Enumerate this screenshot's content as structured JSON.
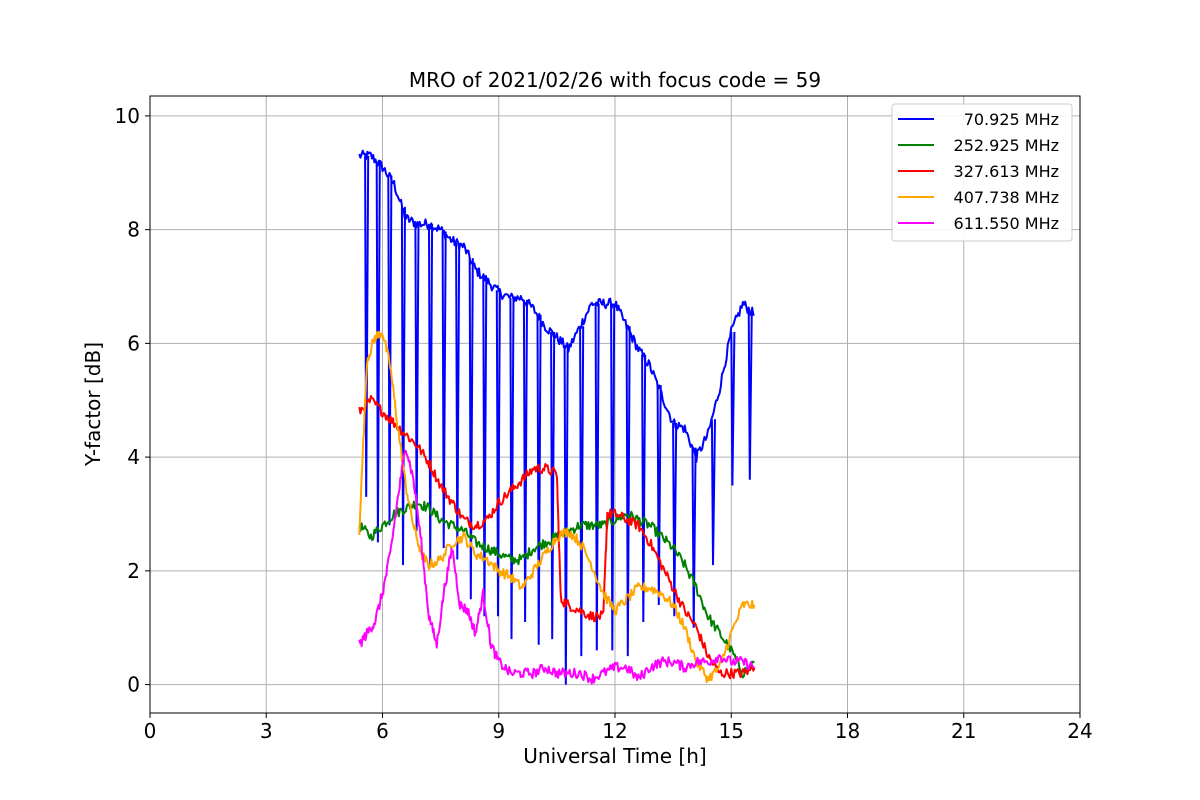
{
  "chart_data": {
    "type": "line",
    "title": "MRO of 2021/02/26 with focus code = 59",
    "xlabel": "Universal Time [h]",
    "ylabel": "Y-factor [dB]",
    "xlim": [
      0,
      24
    ],
    "ylim": [
      -0.5,
      10.35
    ],
    "xticks": [
      0,
      3,
      6,
      9,
      12,
      15,
      18,
      21,
      24
    ],
    "yticks": [
      0,
      2,
      4,
      6,
      8,
      10
    ],
    "grid": true,
    "legend_position": "top-right",
    "series": [
      {
        "name": "70.925 MHz",
        "color": "#0000ff",
        "x": [
          5.4,
          5.7,
          6.0,
          6.3,
          6.6,
          6.9,
          7.2,
          7.5,
          7.8,
          8.1,
          8.4,
          8.7,
          9.0,
          9.3,
          9.6,
          9.9,
          10.2,
          10.5,
          10.8,
          11.1,
          11.4,
          11.7,
          12.0,
          12.3,
          12.6,
          12.9,
          13.2,
          13.5,
          13.8,
          14.1,
          14.4,
          14.7,
          15.0,
          15.3,
          15.6
        ],
        "values": [
          9.3,
          9.3,
          9.1,
          8.8,
          8.2,
          8.1,
          8.1,
          8.0,
          7.8,
          7.7,
          7.3,
          7.1,
          6.9,
          6.8,
          6.8,
          6.6,
          6.3,
          6.1,
          5.9,
          6.3,
          6.7,
          6.7,
          6.7,
          6.3,
          5.9,
          5.6,
          5.1,
          4.6,
          4.5,
          4.0,
          4.4,
          5.2,
          6.2,
          6.7,
          6.5
        ],
        "dips": [
          5.55,
          5.85,
          6.15,
          6.5,
          6.85,
          7.2,
          7.55,
          7.9,
          8.25,
          8.6,
          8.95,
          9.3,
          9.65,
          10.0,
          10.35,
          10.7,
          11.1,
          11.5,
          11.9,
          12.3,
          12.7,
          13.1,
          13.5,
          14.0,
          14.5,
          15.0,
          15.45
        ],
        "dip_values": [
          3.3,
          2.5,
          2.8,
          2.1,
          2.7,
          2.1,
          2.4,
          2.2,
          1.5,
          1.2,
          1.2,
          0.8,
          1.1,
          0.7,
          0.8,
          0.0,
          0.5,
          0.6,
          0.6,
          0.5,
          1.1,
          1.4,
          1.2,
          1.0,
          2.1,
          3.5,
          3.6
        ]
      },
      {
        "name": "252.925 MHz",
        "color": "#008000",
        "x": [
          5.4,
          5.7,
          6.0,
          6.3,
          6.6,
          6.9,
          7.2,
          7.5,
          7.8,
          8.1,
          8.4,
          8.7,
          9.0,
          9.3,
          9.6,
          9.9,
          10.2,
          10.5,
          10.8,
          11.1,
          11.4,
          11.7,
          12.0,
          12.3,
          12.6,
          12.9,
          13.2,
          13.5,
          13.8,
          14.1,
          14.4,
          14.7,
          15.0,
          15.3,
          15.6
        ],
        "values": [
          2.8,
          2.6,
          2.8,
          3.0,
          3.1,
          3.2,
          3.1,
          2.9,
          2.8,
          2.7,
          2.5,
          2.4,
          2.3,
          2.2,
          2.2,
          2.4,
          2.5,
          2.6,
          2.7,
          2.8,
          2.8,
          2.8,
          2.9,
          3.0,
          2.9,
          2.8,
          2.6,
          2.4,
          2.1,
          1.7,
          1.2,
          0.9,
          0.6,
          0.2,
          0.4
        ]
      },
      {
        "name": "327.613 MHz",
        "color": "#ff0000",
        "x": [
          5.4,
          5.7,
          6.0,
          6.3,
          6.6,
          6.9,
          7.2,
          7.5,
          7.8,
          8.1,
          8.4,
          8.7,
          9.0,
          9.3,
          9.6,
          9.9,
          10.2,
          10.5,
          10.6,
          10.8,
          11.1,
          11.4,
          11.7,
          11.8,
          12.0,
          12.3,
          12.6,
          12.9,
          13.2,
          13.5,
          13.8,
          14.1,
          14.4,
          14.7,
          15.0,
          15.3,
          15.6
        ],
        "values": [
          4.8,
          5.0,
          4.8,
          4.6,
          4.4,
          4.2,
          3.9,
          3.5,
          3.2,
          2.9,
          2.8,
          2.9,
          3.2,
          3.4,
          3.6,
          3.8,
          3.8,
          3.7,
          1.5,
          1.4,
          1.3,
          1.2,
          1.2,
          3.0,
          3.0,
          2.9,
          2.8,
          2.5,
          2.1,
          1.7,
          1.3,
          1.0,
          0.5,
          0.2,
          0.2,
          0.2,
          0.3
        ]
      },
      {
        "name": "407.738 MHz",
        "color": "#ffa500",
        "x": [
          5.4,
          5.6,
          5.8,
          6.0,
          6.2,
          6.4,
          6.6,
          6.8,
          7.0,
          7.2,
          7.5,
          7.8,
          8.1,
          8.4,
          8.7,
          9.0,
          9.3,
          9.6,
          9.9,
          10.2,
          10.5,
          10.8,
          11.1,
          11.4,
          11.7,
          12.0,
          12.3,
          12.6,
          12.9,
          13.2,
          13.5,
          13.8,
          14.1,
          14.4,
          14.7,
          15.0,
          15.3,
          15.6
        ],
        "values": [
          2.7,
          5.7,
          6.1,
          6.2,
          5.6,
          4.5,
          3.5,
          2.8,
          2.3,
          2.1,
          2.2,
          2.5,
          2.6,
          2.3,
          2.2,
          2.0,
          1.9,
          1.7,
          2.0,
          2.3,
          2.6,
          2.7,
          2.5,
          2.1,
          1.6,
          1.3,
          1.5,
          1.7,
          1.7,
          1.6,
          1.4,
          1.0,
          0.4,
          0.1,
          0.3,
          0.9,
          1.4,
          1.4
        ]
      },
      {
        "name": "611.550 MHz",
        "color": "#ff00ff",
        "x": [
          5.4,
          5.6,
          5.8,
          6.0,
          6.2,
          6.4,
          6.6,
          6.8,
          7.0,
          7.2,
          7.4,
          7.6,
          7.8,
          8.0,
          8.2,
          8.4,
          8.6,
          8.8,
          9.0,
          9.3,
          9.6,
          9.9,
          10.2,
          10.5,
          10.8,
          11.1,
          11.4,
          11.7,
          12.0,
          12.3,
          12.6,
          12.9,
          13.2,
          13.5,
          13.8,
          14.1,
          14.4,
          14.7,
          15.0,
          15.3,
          15.6
        ],
        "values": [
          0.7,
          0.9,
          1.1,
          1.6,
          2.3,
          3.3,
          4.2,
          3.6,
          2.5,
          1.2,
          0.7,
          1.7,
          2.4,
          1.4,
          1.3,
          0.9,
          1.6,
          0.7,
          0.4,
          0.2,
          0.2,
          0.2,
          0.3,
          0.2,
          0.2,
          0.2,
          0.1,
          0.2,
          0.3,
          0.3,
          0.1,
          0.3,
          0.4,
          0.4,
          0.3,
          0.4,
          0.4,
          0.5,
          0.4,
          0.4,
          0.3
        ]
      }
    ]
  }
}
